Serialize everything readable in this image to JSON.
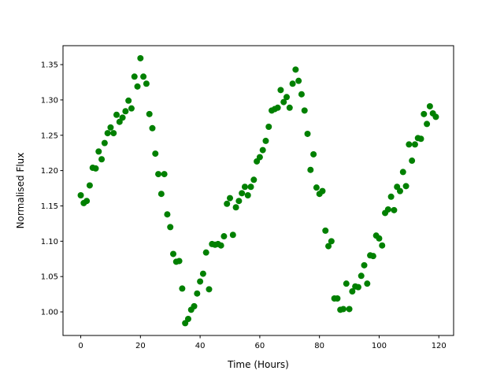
{
  "chart_data": {
    "type": "scatter",
    "x_label": "Time (Hours)",
    "y_label": "Normalised Flux",
    "color": "#008000",
    "x": [
      0,
      1,
      2,
      3,
      4,
      5,
      6,
      7,
      8,
      9,
      10,
      11,
      12,
      13,
      14,
      15,
      16,
      17,
      18,
      19,
      20,
      21,
      22,
      23,
      24,
      25,
      26,
      27,
      28,
      29,
      30,
      31,
      32,
      33,
      34,
      35,
      36,
      37,
      38,
      39,
      40,
      41,
      42,
      43,
      44,
      45,
      46,
      47,
      48,
      49,
      50,
      51,
      52,
      53,
      54,
      55,
      56,
      57,
      58,
      59,
      60,
      61,
      62,
      63,
      64,
      65,
      66,
      67,
      68,
      69,
      70,
      71,
      72,
      73,
      74,
      75,
      76,
      77,
      78,
      79,
      80,
      81,
      82,
      83,
      84,
      85,
      86,
      87,
      88,
      89,
      90,
      91,
      92,
      93,
      94,
      95,
      96,
      97,
      98,
      99,
      100,
      101,
      102,
      103,
      104,
      105,
      106,
      107,
      108,
      109,
      110,
      111,
      112,
      113,
      114,
      115,
      116,
      117,
      118,
      119
    ],
    "values": [
      1.165,
      1.154,
      1.157,
      1.179,
      1.204,
      1.203,
      1.227,
      1.216,
      1.239,
      1.253,
      1.261,
      1.253,
      1.279,
      1.269,
      1.275,
      1.284,
      1.299,
      1.288,
      1.333,
      1.319,
      1.359,
      1.333,
      1.323,
      1.28,
      1.26,
      1.224,
      1.195,
      1.167,
      1.195,
      1.138,
      1.12,
      1.082,
      1.071,
      1.072,
      1.033,
      0.984,
      0.99,
      1.003,
      1.008,
      1.026,
      1.043,
      1.054,
      1.084,
      1.032,
      1.096,
      1.095,
      1.096,
      1.094,
      1.107,
      1.153,
      1.161,
      1.109,
      1.148,
      1.157,
      1.168,
      1.177,
      1.165,
      1.177,
      1.187,
      1.213,
      1.219,
      1.229,
      1.242,
      1.262,
      1.285,
      1.287,
      1.289,
      1.314,
      1.297,
      1.304,
      1.289,
      1.323,
      1.343,
      1.327,
      1.308,
      1.285,
      1.252,
      1.201,
      1.223,
      1.176,
      1.167,
      1.171,
      1.115,
      1.093,
      1.1,
      1.019,
      1.019,
      1.003,
      1.004,
      1.04,
      1.004,
      1.029,
      1.036,
      1.035,
      1.051,
      1.066,
      1.04,
      1.08,
      1.079,
      1.108,
      1.104,
      1.094,
      1.14,
      1.145,
      1.163,
      1.144,
      1.177,
      1.171,
      1.198,
      1.178,
      1.237,
      1.214,
      1.237,
      1.246,
      1.245,
      1.28,
      1.266,
      1.291,
      1.281,
      1.276
    ],
    "xlim": [
      -5.95,
      124.95
    ],
    "xticks": [
      0,
      20,
      40,
      60,
      80,
      100,
      120
    ],
    "ylim": [
      0.9666,
      1.3768
    ],
    "yticks": [
      {
        "value": 1.0,
        "label": "1.00"
      },
      1.05,
      {
        "value": 1.1,
        "label": "1.10"
      },
      1.15,
      {
        "value": 1.2,
        "label": "1.20"
      },
      1.25,
      {
        "value": 1.3,
        "label": "1.30"
      },
      1.35
    ]
  }
}
